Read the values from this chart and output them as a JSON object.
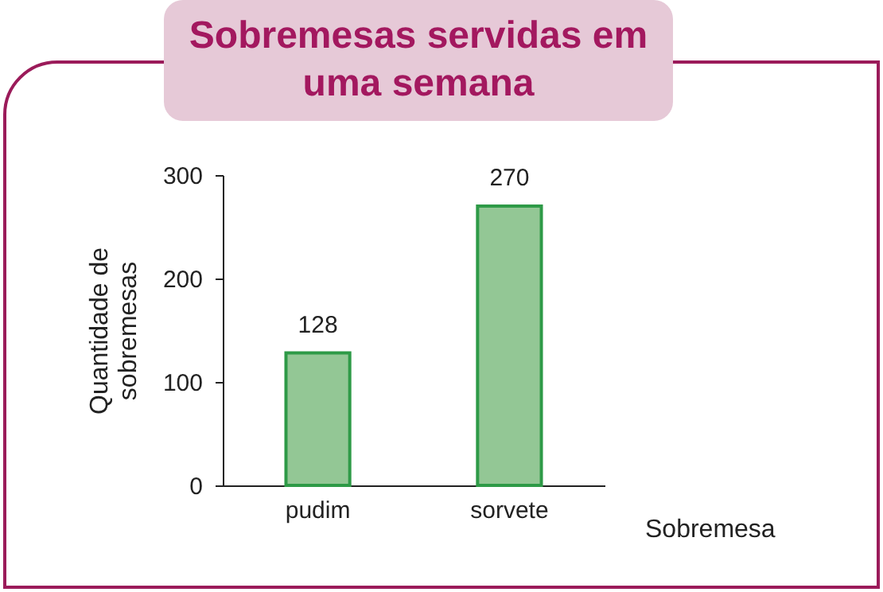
{
  "chart_data": {
    "type": "bar",
    "title": "Sobremesas servidas em uma semana",
    "xlabel": "Sobremesa",
    "ylabel": "Quantidade de sobremesas",
    "categories": [
      "pudim",
      "sorvete"
    ],
    "values": [
      128,
      270
    ],
    "color": "#93c795",
    "ylim": [
      0,
      300
    ],
    "yticks": [
      0,
      100,
      200,
      300
    ],
    "data_labels": true
  }
}
